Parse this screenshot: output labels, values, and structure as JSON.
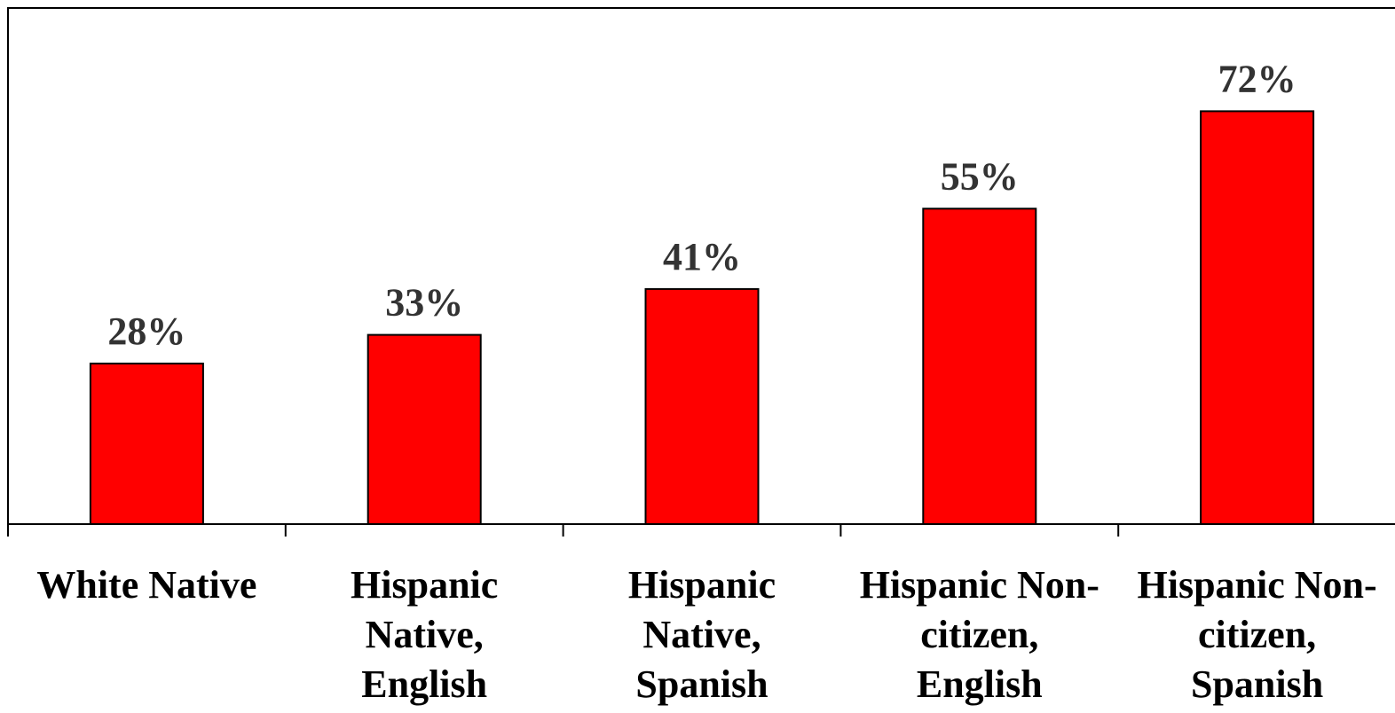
{
  "chart_data": {
    "type": "bar",
    "categories": [
      [
        "White Native"
      ],
      [
        "Hispanic",
        "Native,",
        "English"
      ],
      [
        "Hispanic",
        "Native,",
        "Spanish"
      ],
      [
        "Hispanic Non-",
        "citizen,",
        "English"
      ],
      [
        "Hispanic Non-",
        "citizen,",
        "Spanish"
      ]
    ],
    "values": [
      28,
      33,
      41,
      55,
      72
    ],
    "data_labels": [
      "28%",
      "33%",
      "41%",
      "55%",
      "72%"
    ],
    "title": "",
    "xlabel": "",
    "ylabel": "",
    "ylim": [
      0,
      90
    ],
    "grid": false,
    "legend": "none",
    "bar_color": "#ff0000",
    "bar_edge_color": "#000000",
    "label_color": "#333333"
  }
}
